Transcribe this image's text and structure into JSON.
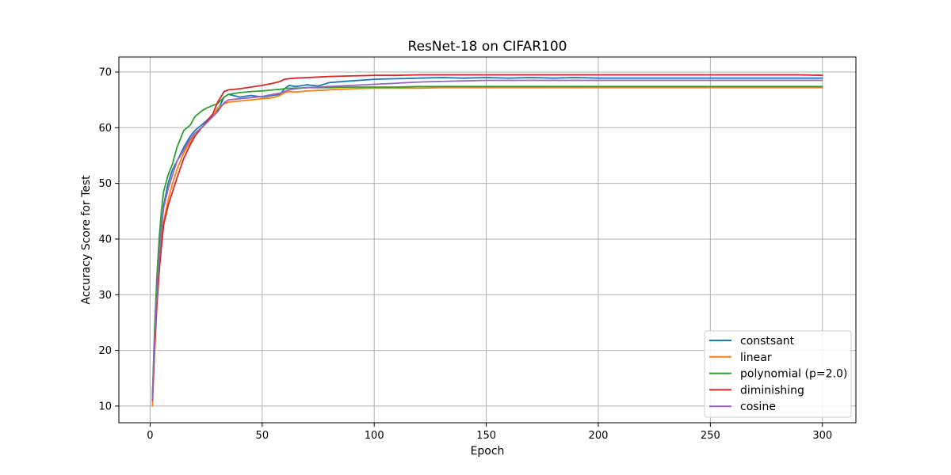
{
  "chart_data": {
    "type": "line",
    "title": "ResNet-18 on CIFAR100",
    "xlabel": "Epoch",
    "ylabel": "Accuracy Score for Test",
    "xlim": [
      -13.95,
      314.95
    ],
    "ylim": [
      7.0,
      72.7
    ],
    "xticks": [
      0,
      50,
      100,
      150,
      200,
      250,
      300
    ],
    "yticks": [
      10,
      20,
      30,
      40,
      50,
      60,
      70
    ],
    "grid": true,
    "legend_position": "lower-right",
    "series": [
      {
        "name": "constsant",
        "color": "#1f77b4",
        "x": [
          1,
          2,
          3,
          4,
          5,
          6,
          8,
          10,
          12,
          15,
          18,
          20,
          23,
          25,
          28,
          30,
          33,
          35,
          40,
          45,
          50,
          55,
          58,
          60,
          62,
          65,
          70,
          75,
          80,
          90,
          100,
          110,
          120,
          130,
          140,
          150,
          160,
          170,
          180,
          190,
          200,
          210,
          220,
          230,
          240,
          250,
          260,
          270,
          280,
          290,
          300
        ],
        "y": [
          11.0,
          22.0,
          30.0,
          37.0,
          42.0,
          46.0,
          50.0,
          52.5,
          54.0,
          56.5,
          58.5,
          59.5,
          60.5,
          61.2,
          62.3,
          63.0,
          65.5,
          66.0,
          65.5,
          65.8,
          65.5,
          65.8,
          66.0,
          67.0,
          67.6,
          67.4,
          67.7,
          67.5,
          68.1,
          68.4,
          68.7,
          68.8,
          68.9,
          69.0,
          68.9,
          69.0,
          68.9,
          69.0,
          68.9,
          69.0,
          68.9,
          68.9,
          68.9,
          68.9,
          68.9,
          68.9,
          68.9,
          68.9,
          68.9,
          68.9,
          68.9
        ]
      },
      {
        "name": "linear",
        "color": "#ff7f0e",
        "x": [
          1,
          2,
          3,
          4,
          5,
          6,
          8,
          10,
          12,
          15,
          18,
          20,
          23,
          25,
          28,
          30,
          33,
          35,
          40,
          45,
          50,
          55,
          58,
          60,
          62,
          65,
          70,
          75,
          80,
          90,
          100,
          110,
          120,
          130,
          140,
          150,
          160,
          170,
          180,
          190,
          200,
          210,
          220,
          230,
          240,
          250,
          260,
          270,
          280,
          290,
          300
        ],
        "y": [
          10.0,
          20.0,
          28.0,
          34.5,
          39.0,
          43.0,
          47.0,
          50.0,
          52.5,
          55.5,
          57.5,
          59.0,
          60.0,
          60.8,
          62.0,
          63.5,
          64.3,
          64.6,
          64.8,
          65.0,
          65.2,
          65.4,
          65.8,
          66.3,
          66.5,
          66.4,
          66.6,
          66.7,
          66.8,
          67.0,
          67.1,
          67.1,
          67.1,
          67.2,
          67.2,
          67.2,
          67.2,
          67.2,
          67.2,
          67.2,
          67.2,
          67.2,
          67.2,
          67.2,
          67.2,
          67.2,
          67.2,
          67.2,
          67.2,
          67.2,
          67.2
        ]
      },
      {
        "name": "polynomial (p=2.0)",
        "color": "#2ca02c",
        "x": [
          1,
          2,
          3,
          4,
          5,
          6,
          8,
          10,
          12,
          15,
          18,
          20,
          23,
          25,
          28,
          30,
          33,
          35,
          40,
          45,
          50,
          55,
          58,
          60,
          62,
          65,
          70,
          75,
          80,
          90,
          100,
          110,
          120,
          130,
          140,
          150,
          160,
          170,
          180,
          190,
          200,
          210,
          220,
          230,
          240,
          250,
          260,
          270,
          280,
          290,
          300
        ],
        "y": [
          11.5,
          24.0,
          33.0,
          40.0,
          45.0,
          48.5,
          51.5,
          53.5,
          56.5,
          59.5,
          60.5,
          62.0,
          63.0,
          63.5,
          64.0,
          64.3,
          65.5,
          66.0,
          66.3,
          66.5,
          66.6,
          66.8,
          66.9,
          67.0,
          67.1,
          67.1,
          67.2,
          67.2,
          67.2,
          67.3,
          67.3,
          67.3,
          67.4,
          67.4,
          67.4,
          67.4,
          67.4,
          67.4,
          67.4,
          67.4,
          67.4,
          67.4,
          67.4,
          67.4,
          67.4,
          67.4,
          67.4,
          67.4,
          67.4,
          67.4,
          67.4
        ]
      },
      {
        "name": "diminishing",
        "color": "#d62728",
        "x": [
          1,
          2,
          3,
          4,
          5,
          6,
          8,
          10,
          12,
          15,
          18,
          20,
          23,
          25,
          28,
          30,
          33,
          35,
          40,
          45,
          50,
          55,
          58,
          60,
          62,
          65,
          70,
          75,
          80,
          90,
          100,
          110,
          120,
          130,
          140,
          150,
          160,
          170,
          180,
          190,
          200,
          210,
          220,
          230,
          240,
          250,
          260,
          270,
          280,
          290,
          300
        ],
        "y": [
          11.0,
          20.0,
          28.0,
          34.0,
          38.5,
          42.5,
          46.0,
          48.5,
          51.0,
          54.5,
          57.0,
          58.5,
          60.0,
          61.0,
          62.5,
          64.5,
          66.5,
          66.8,
          67.0,
          67.3,
          67.6,
          68.0,
          68.3,
          68.7,
          68.8,
          68.9,
          69.0,
          69.1,
          69.2,
          69.3,
          69.4,
          69.4,
          69.5,
          69.5,
          69.5,
          69.5,
          69.5,
          69.5,
          69.5,
          69.5,
          69.5,
          69.5,
          69.5,
          69.5,
          69.5,
          69.5,
          69.5,
          69.5,
          69.5,
          69.5,
          69.4
        ]
      },
      {
        "name": "cosine",
        "color": "#9467bd",
        "x": [
          1,
          2,
          3,
          4,
          5,
          6,
          8,
          10,
          12,
          15,
          18,
          20,
          23,
          25,
          28,
          30,
          33,
          35,
          40,
          45,
          50,
          55,
          58,
          60,
          62,
          65,
          70,
          75,
          80,
          90,
          100,
          110,
          120,
          130,
          140,
          150,
          160,
          170,
          180,
          190,
          200,
          210,
          220,
          230,
          240,
          250,
          260,
          270,
          280,
          290,
          300
        ],
        "y": [
          11.2,
          22.0,
          30.0,
          36.5,
          41.5,
          45.5,
          49.0,
          51.5,
          54.0,
          56.0,
          58.0,
          59.0,
          60.0,
          60.8,
          62.0,
          62.8,
          64.5,
          65.0,
          65.2,
          65.4,
          65.6,
          66.0,
          66.2,
          66.5,
          66.8,
          67.0,
          67.2,
          67.3,
          67.4,
          67.6,
          67.8,
          68.0,
          68.2,
          68.3,
          68.4,
          68.5,
          68.5,
          68.5,
          68.5,
          68.5,
          68.5,
          68.5,
          68.5,
          68.5,
          68.5,
          68.5,
          68.5,
          68.5,
          68.5,
          68.5,
          68.5
        ]
      }
    ]
  }
}
